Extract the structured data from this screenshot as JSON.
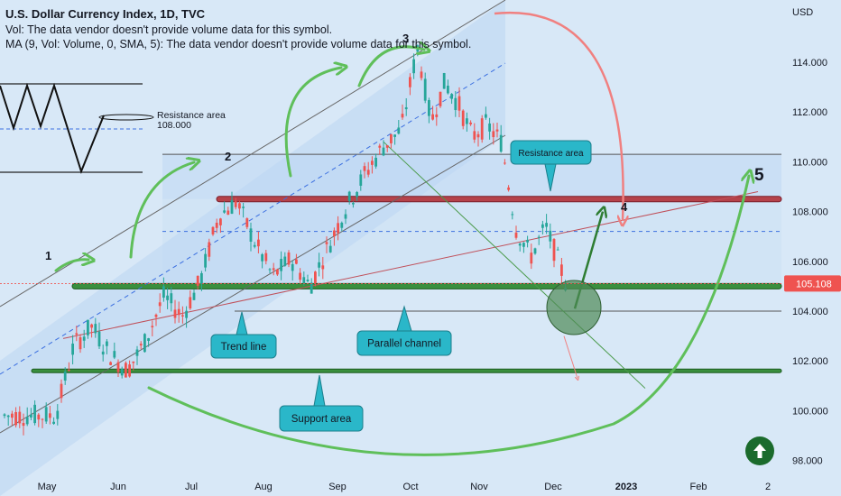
{
  "header": {
    "title": "U.S. Dollar Currency Index, 1D, TVC",
    "vol_line": "Vol: The data vendor doesn't provide volume data for this symbol.",
    "ma_line": "MA (9, Vol: Volume, 0, SMA, 5): The data vendor doesn't provide volume data for this symbol."
  },
  "colors": {
    "up": "#26a69a",
    "down": "#ef5350",
    "green_level": "#3a8f3e",
    "red_level": "#b5424a",
    "annotation_arrow": "#5fbf5a",
    "price_badge": "#ef5350",
    "callout": "#2ab7c9"
  },
  "chart_data": {
    "type": "candlestick",
    "currency_label": "USD",
    "y_ticks": [
      "114.000",
      "112.000",
      "110.000",
      "108.000",
      "106.000",
      "104.000",
      "102.000",
      "100.000",
      "98.000"
    ],
    "x_ticks": [
      "May",
      "Jun",
      "Jul",
      "Aug",
      "Sep",
      "Oct",
      "Nov",
      "Dec",
      "2023",
      "Feb",
      "2"
    ],
    "ylim": [
      97.7,
      116.0
    ],
    "last_price": "105.108",
    "horizontal_levels": [
      105.0,
      104.0,
      101.6,
      108.5,
      110.3,
      107.2
    ],
    "price_path": [
      [
        "May",
        99.8
      ],
      [
        "May",
        102.6
      ],
      [
        "May",
        103.4
      ],
      [
        "May",
        102.3
      ],
      [
        "Jun",
        101.6
      ],
      [
        "Jun",
        102.8
      ],
      [
        "Jun",
        104.6
      ],
      [
        "Jun",
        103.8
      ],
      [
        "Jul",
        105.2
      ],
      [
        "Jul",
        107.8
      ],
      [
        "Jul",
        108.4
      ],
      [
        "Jul",
        106.8
      ],
      [
        "Aug",
        105.4
      ],
      [
        "Aug",
        106.1
      ],
      [
        "Aug",
        105.0
      ],
      [
        "Aug",
        106.6
      ],
      [
        "Sep",
        108.2
      ],
      [
        "Sep",
        109.5
      ],
      [
        "Sep",
        110.6
      ],
      [
        "Sep",
        111.3
      ],
      [
        "Oct",
        114.6
      ],
      [
        "Oct",
        111.6
      ],
      [
        "Oct",
        113.2
      ],
      [
        "Oct",
        112.3
      ],
      [
        "Oct",
        111.0
      ],
      [
        "Nov",
        111.5
      ],
      [
        "Nov",
        110.8
      ],
      [
        "Nov",
        107.3
      ],
      [
        "Nov",
        106.2
      ],
      [
        "Nov",
        107.4
      ],
      [
        "Dec",
        105.2
      ],
      [
        "Dec",
        104.4
      ],
      [
        "Dec",
        105.1
      ]
    ],
    "annotations": {
      "wave_labels": [
        "1",
        "2",
        "3",
        "4",
        "5"
      ],
      "pattern_label": "Resistance area",
      "pattern_value": "108.000",
      "callouts": [
        "Resistance area",
        "Trend line",
        "Parallel channel",
        "Support area"
      ]
    }
  }
}
